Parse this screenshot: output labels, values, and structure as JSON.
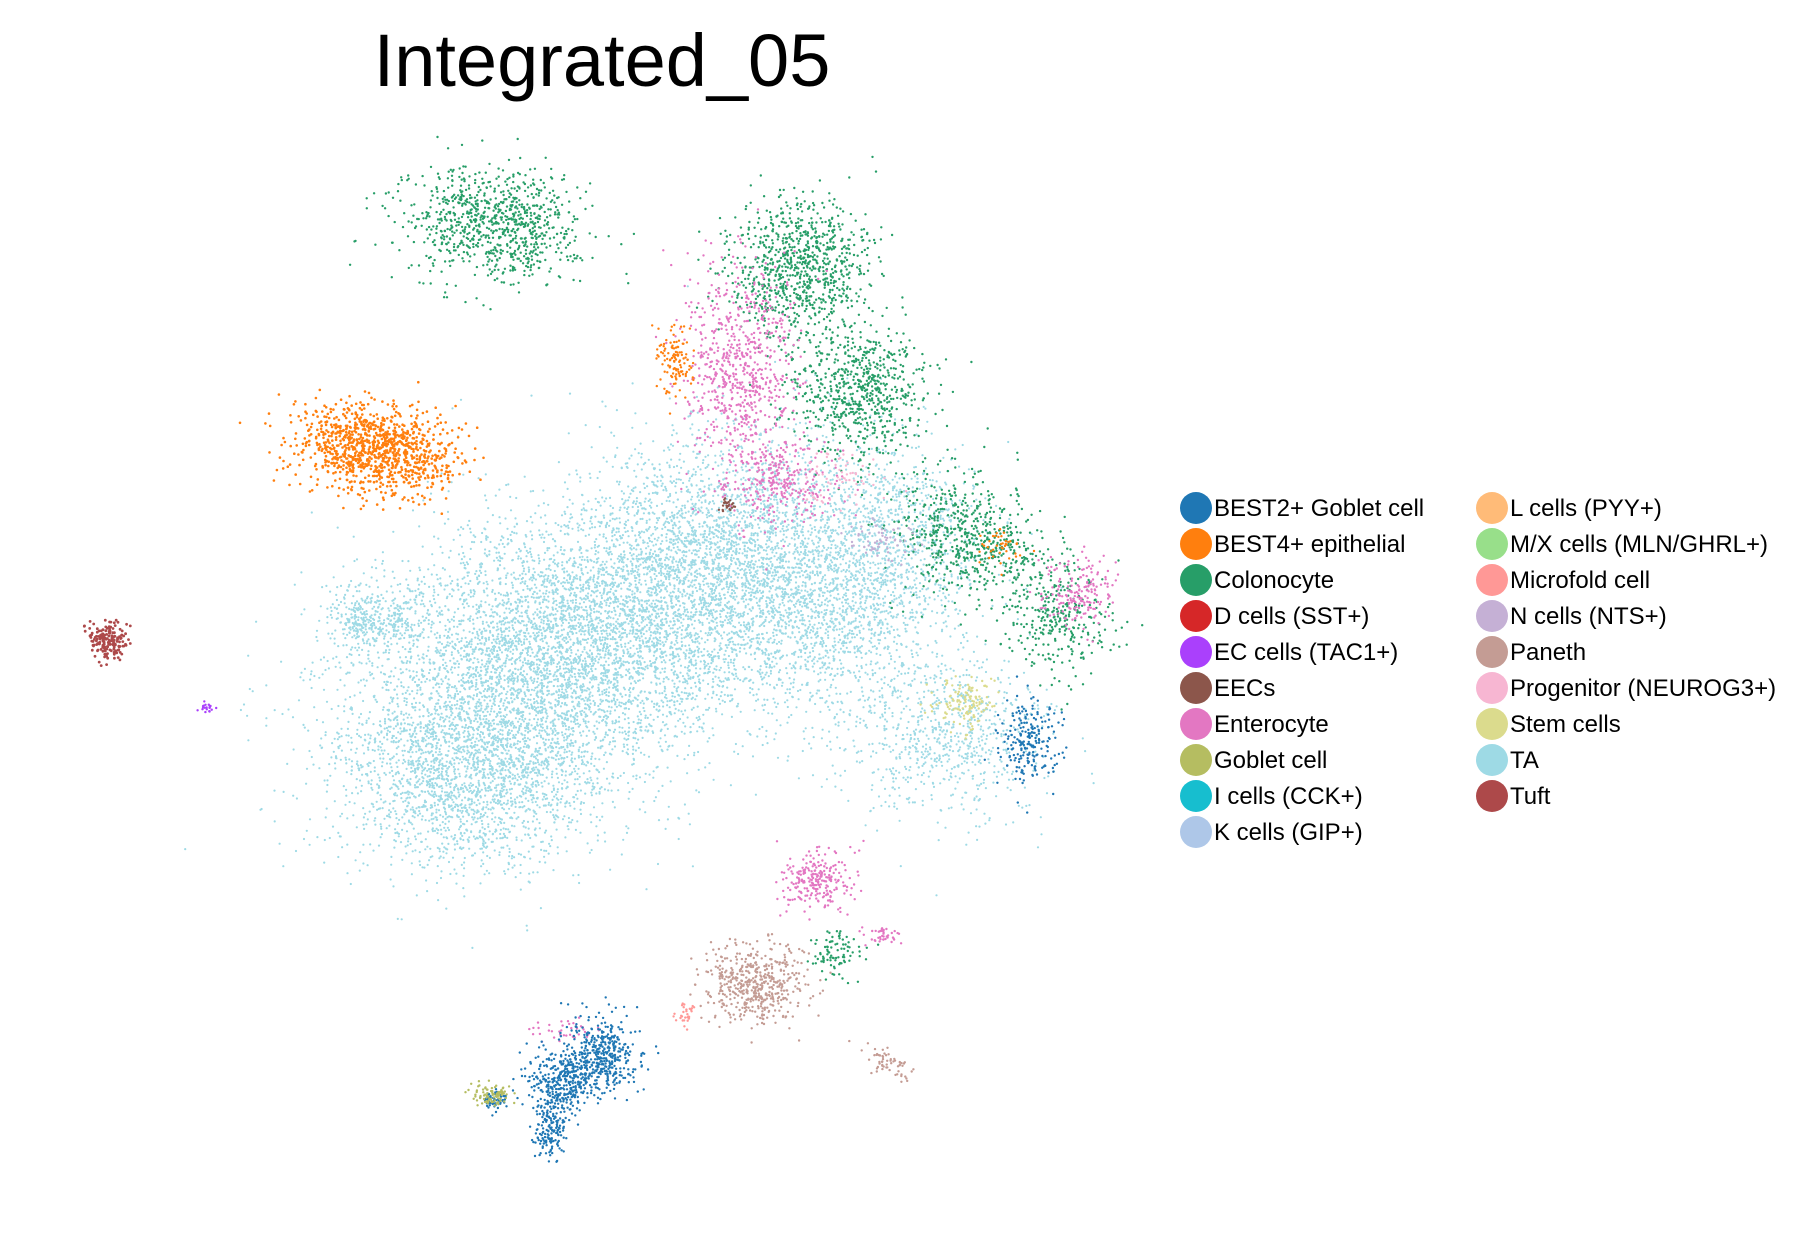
{
  "chart_data": {
    "type": "scatter",
    "title": "Integrated_05",
    "xlabel": "",
    "ylabel": "",
    "axes_visible": false,
    "grid": false,
    "legend_position": "right",
    "legend_columns": 2,
    "series": [
      {
        "name": "BEST2+ Goblet cell",
        "color": "#1f77b4"
      },
      {
        "name": "BEST4+ epithelial",
        "color": "#ff7f0e"
      },
      {
        "name": "Colonocyte",
        "color": "#279e68"
      },
      {
        "name": "D cells (SST+)",
        "color": "#d62728"
      },
      {
        "name": "EC cells (TAC1+)",
        "color": "#aa40fc"
      },
      {
        "name": "EECs",
        "color": "#8c564b"
      },
      {
        "name": "Enterocyte",
        "color": "#e377c2"
      },
      {
        "name": "Goblet cell",
        "color": "#b5bd61"
      },
      {
        "name": "I cells (CCK+)",
        "color": "#17becf"
      },
      {
        "name": "K cells (GIP+)",
        "color": "#aec7e8"
      },
      {
        "name": "L cells (PYY+)",
        "color": "#ffbb78"
      },
      {
        "name": "M/X cells (MLN/GHRL+)",
        "color": "#98df8a"
      },
      {
        "name": "Microfold cell",
        "color": "#ff9896"
      },
      {
        "name": "N cells (NTS+)",
        "color": "#c5b0d5"
      },
      {
        "name": "Paneth",
        "color": "#c49c94"
      },
      {
        "name": "Progenitor (NEUROG3+)",
        "color": "#f7b6d2"
      },
      {
        "name": "Stem cells",
        "color": "#dbdb8d"
      },
      {
        "name": "TA",
        "color": "#9edae5"
      },
      {
        "name": "Tuft",
        "color": "#ad494a"
      }
    ]
  }
}
